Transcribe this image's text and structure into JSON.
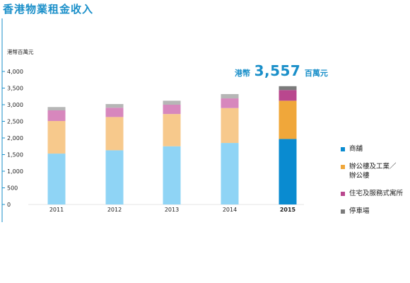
{
  "title": "香港物業租金收入",
  "callout": {
    "prefix": "港幣",
    "value": "3,557",
    "suffix": "百萬元"
  },
  "chart_data": {
    "type": "bar",
    "stacked": true,
    "unit_label": "港幣百萬元",
    "categories": [
      "2011",
      "2012",
      "2013",
      "2014",
      "2015"
    ],
    "highlight_category": "2015",
    "ylim": [
      0,
      4000
    ],
    "yticks": [
      0,
      500,
      1000,
      1500,
      2000,
      2500,
      3000,
      3500,
      4000
    ],
    "ytick_labels": [
      "0",
      "500",
      "1,000",
      "1,500",
      "2,000",
      "2,500",
      "3,000",
      "3,500",
      "4,000"
    ],
    "grid": false,
    "legend_position": "right",
    "series": [
      {
        "name": "商舖",
        "values": [
          1530,
          1630,
          1750,
          1850,
          1970
        ],
        "color": "#8fd4f5",
        "highlight_color": "#0a8bd0"
      },
      {
        "name": "辦公樓及工業／\n辦公樓",
        "values": [
          980,
          1000,
          970,
          1050,
          1150
        ],
        "color": "#f7c98c",
        "highlight_color": "#f0a73a"
      },
      {
        "name": "住宅及服務式寓所",
        "values": [
          320,
          280,
          280,
          290,
          320
        ],
        "color": "#d787bd",
        "highlight_color": "#b9478e"
      },
      {
        "name": "停車場",
        "values": [
          100,
          110,
          120,
          130,
          117
        ],
        "color": "#b6b6b6",
        "highlight_color": "#7b7b7b"
      }
    ]
  },
  "colors": {
    "accent": "#1a8fc9",
    "axis_line": "#1a8fc9"
  }
}
